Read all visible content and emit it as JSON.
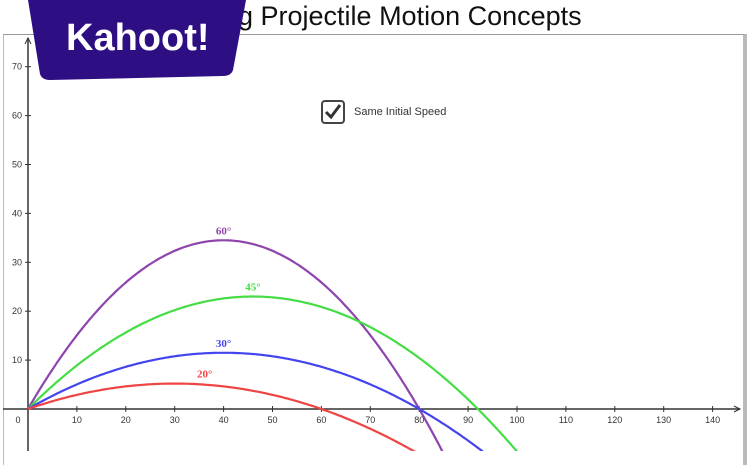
{
  "title": "g Projectile Motion Concepts",
  "logo": {
    "text": "Kahoot!",
    "color": "#2d0f83"
  },
  "checkbox": {
    "label": "Same Initial Speed",
    "checked": true
  },
  "chart_data": {
    "type": "line",
    "title": "Projectile Motion Concepts",
    "xlabel": "",
    "ylabel": "",
    "xlim": [
      0,
      145
    ],
    "ylim": [
      -8,
      72
    ],
    "x_ticks": [
      0,
      10,
      20,
      30,
      40,
      50,
      60,
      70,
      80,
      90,
      100,
      110,
      120,
      130,
      140
    ],
    "y_ticks": [
      10,
      20,
      30,
      40,
      50,
      60,
      70
    ],
    "grid": false,
    "series": [
      {
        "name": "60°",
        "color": "#8e44ad",
        "peak": [
          39,
          34.5
        ],
        "range": 80
      },
      {
        "name": "45°",
        "color": "#44dd44",
        "peak": [
          46,
          23
        ],
        "range": 92
      },
      {
        "name": "30°",
        "color": "#4444ee",
        "peak": [
          40,
          11.5
        ],
        "range": 80
      },
      {
        "name": "20°",
        "color": "#ee4444",
        "peak": [
          29,
          5.2
        ],
        "range": 60
      }
    ]
  }
}
